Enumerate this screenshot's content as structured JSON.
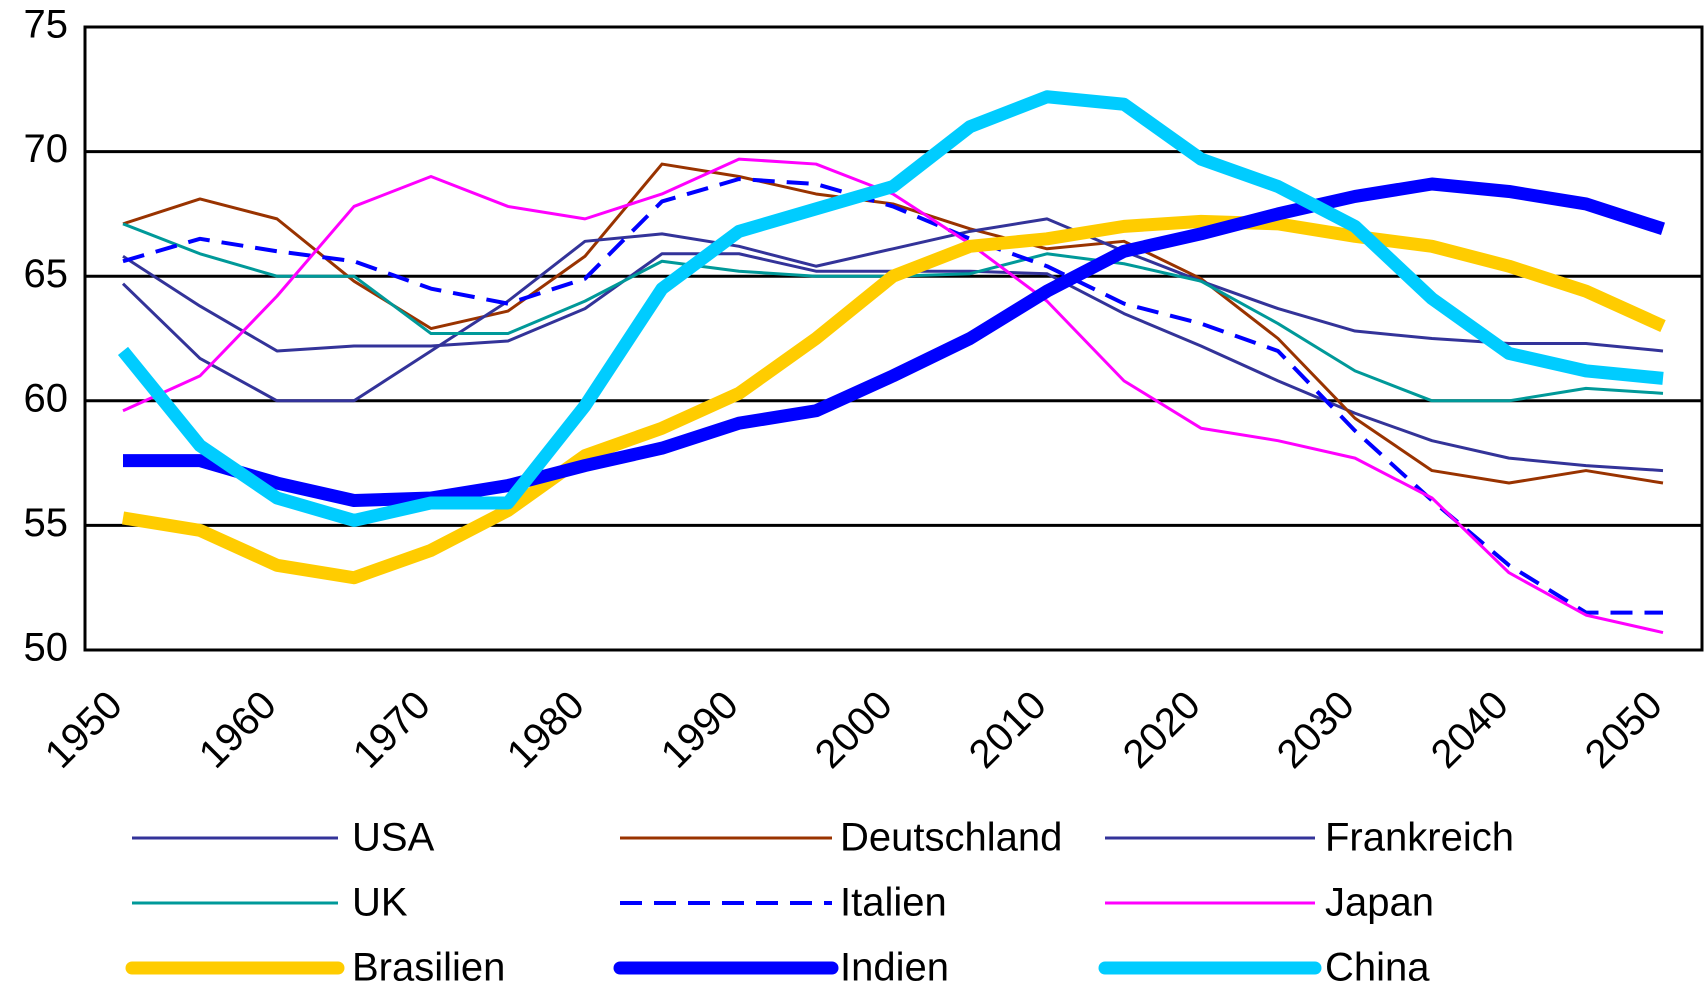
{
  "chart_data": {
    "type": "line",
    "categories": [
      "1950",
      null,
      "1960",
      null,
      "1970",
      null,
      "1980",
      null,
      "1990",
      null,
      "2000",
      null,
      "2010",
      null,
      "2020",
      null,
      "2030",
      null,
      "2040",
      null,
      "2050"
    ],
    "ylim": [
      50,
      75
    ],
    "yticks": [
      50,
      55,
      60,
      65,
      70,
      75
    ],
    "grid": true,
    "series": [
      {
        "name": "USA",
        "color": "#333399",
        "width": 3,
        "values": [
          65.8,
          63.8,
          62.0,
          62.2,
          62.2,
          62.4,
          63.7,
          65.9,
          65.9,
          65.2,
          65.2,
          65.2,
          65.1,
          63.5,
          62.2,
          60.8,
          59.5,
          58.4,
          57.7,
          57.4,
          57.2
        ]
      },
      {
        "name": "Deutschland",
        "color": "#993300",
        "width": 3,
        "values": [
          67.1,
          68.1,
          67.3,
          64.8,
          62.9,
          63.6,
          65.8,
          69.5,
          69.0,
          68.3,
          67.9,
          66.9,
          66.1,
          66.4,
          64.9,
          62.5,
          59.3,
          57.2,
          56.7,
          57.2,
          56.7
        ]
      },
      {
        "name": "Frankreich",
        "color": "#333399",
        "width": 3,
        "values": [
          64.7,
          61.7,
          60.0,
          60.0,
          62.0,
          64.0,
          66.4,
          66.7,
          66.2,
          65.4,
          66.1,
          66.8,
          67.3,
          66.0,
          64.8,
          63.7,
          62.8,
          62.5,
          62.3,
          62.3,
          62.0
        ]
      },
      {
        "name": "UK",
        "color": "#009999",
        "width": 3,
        "values": [
          67.1,
          65.9,
          65.0,
          65.0,
          62.7,
          62.7,
          64.0,
          65.6,
          65.2,
          65.0,
          65.0,
          65.1,
          65.9,
          65.5,
          64.8,
          63.1,
          61.2,
          60.0,
          60.0,
          60.5,
          60.3
        ]
      },
      {
        "name": "Italien",
        "color": "#0000ff",
        "width": 4,
        "dash": true,
        "values": [
          65.6,
          66.5,
          66.0,
          65.6,
          64.5,
          63.9,
          64.9,
          68.0,
          68.9,
          68.7,
          67.8,
          66.5,
          65.4,
          63.9,
          63.1,
          62.0,
          58.8,
          56.0,
          53.4,
          51.5,
          51.5
        ]
      },
      {
        "name": "Japan",
        "color": "#ff00ff",
        "width": 3,
        "values": [
          59.6,
          61.0,
          64.2,
          67.8,
          69.0,
          67.8,
          67.3,
          68.3,
          69.7,
          69.5,
          68.3,
          66.3,
          64.0,
          60.8,
          58.9,
          58.4,
          57.7,
          56.1,
          53.1,
          51.4,
          50.7
        ]
      },
      {
        "name": "Brasilien",
        "color": "#ffcc00",
        "width": 13,
        "values": [
          55.3,
          54.8,
          53.4,
          52.9,
          54.0,
          55.6,
          57.8,
          58.9,
          60.3,
          62.5,
          65.0,
          66.2,
          66.5,
          67.0,
          67.2,
          67.1,
          66.6,
          66.2,
          65.4,
          64.4,
          63.0
        ]
      },
      {
        "name": "Indien",
        "color": "#0000ff",
        "width": 13,
        "values": [
          57.6,
          57.6,
          56.7,
          56.0,
          56.1,
          56.6,
          57.4,
          58.1,
          59.1,
          59.6,
          61.0,
          62.5,
          64.4,
          66.0,
          66.7,
          67.5,
          68.2,
          68.7,
          68.4,
          67.9,
          66.9
        ]
      },
      {
        "name": "China",
        "color": "#00ccff",
        "width": 13,
        "values": [
          62.0,
          58.2,
          56.1,
          55.2,
          55.9,
          55.9,
          59.8,
          64.5,
          66.8,
          67.7,
          68.6,
          71.0,
          72.2,
          71.9,
          69.7,
          68.6,
          67.0,
          64.1,
          61.9,
          61.2,
          60.9
        ]
      }
    ]
  }
}
